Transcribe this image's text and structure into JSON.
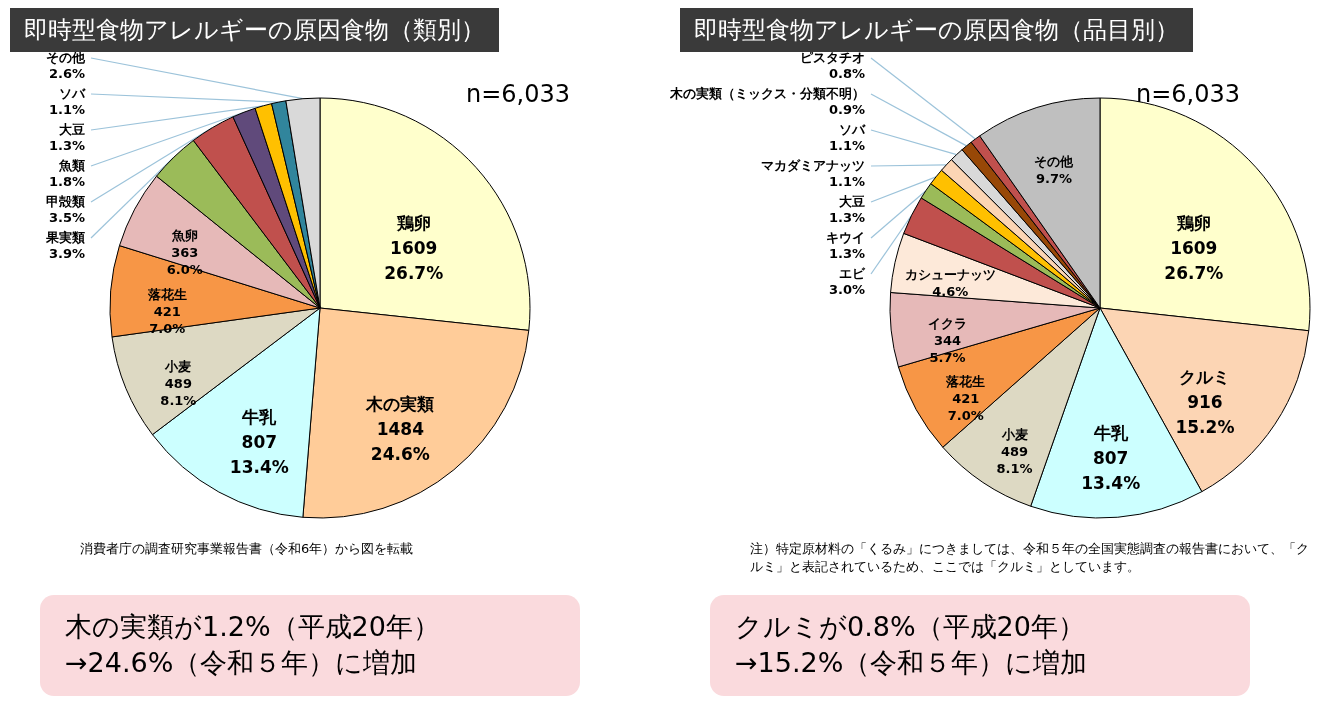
{
  "chart_data": [
    {
      "type": "pie",
      "title": "即時型食物アレルギーの原因食物（類別）",
      "categories": [
        "鶏卵",
        "木の実類",
        "牛乳",
        "小麦",
        "落花生",
        "魚卵",
        "果実類",
        "甲殻類",
        "魚類",
        "大豆",
        "ソバ",
        "その他"
      ],
      "values": [
        26.7,
        24.6,
        13.4,
        8.1,
        7.0,
        6.0,
        3.9,
        3.5,
        1.8,
        1.3,
        1.1,
        2.6
      ],
      "value_labels": [
        "1609\n26.7%",
        "1484\n24.6%",
        "807\n13.4%",
        "489\n8.1%",
        "421\n7.0%",
        "363\n6.0%",
        "3.9%",
        "3.5%",
        "1.8%",
        "1.3%",
        "1.1%",
        "2.6%"
      ],
      "colors": [
        "#ffffcc",
        "#ffcc99",
        "#ccffff",
        "#ddd9c3",
        "#f79646",
        "#e6b9b8",
        "#9bbb59",
        "#c0504d",
        "#604a7b",
        "#ffc000",
        "#31859c",
        "#d9d9d9"
      ],
      "annotations": [
        "n=6,033",
        "消費者庁の調査研究事業報告書（令和6年）から図を転載",
        "木の実類が1.2%（平成20年）\n→24.6%（令和５年）に増加"
      ]
    },
    {
      "type": "pie",
      "title": "即時型食物アレルギーの原因食物（品目別）",
      "categories": [
        "鶏卵",
        "クルミ",
        "牛乳",
        "小麦",
        "落花生",
        "イクラ",
        "カシューナッツ",
        "エビ",
        "キウイ",
        "大豆",
        "マカダミアナッツ",
        "ソバ",
        "木の実類（ミックス・分類不明）",
        "ピスタチオ",
        "その他"
      ],
      "values": [
        26.7,
        15.2,
        13.4,
        8.1,
        7.0,
        5.7,
        4.6,
        3.0,
        1.3,
        1.3,
        1.1,
        1.1,
        0.9,
        0.8,
        9.7
      ],
      "value_labels": [
        "1609\n26.7%",
        "916\n15.2%",
        "807\n13.4%",
        "489\n8.1%",
        "421\n7.0%",
        "344\n5.7%",
        "4.6%",
        "3.0%",
        "1.3%",
        "1.3%",
        "1.1%",
        "1.1%",
        "0.9%",
        "0.8%",
        "9.7%"
      ],
      "colors": [
        "#ffffcc",
        "#fcd5b4",
        "#ccffff",
        "#ddd9c3",
        "#f79646",
        "#e6b9b8",
        "#fde9d9",
        "#c0504d",
        "#9bbb59",
        "#ffc000",
        "#fcd5b4",
        "#d9d9d9",
        "#984807",
        "#c0504d",
        "#bfbfbf"
      ],
      "annotations": [
        "n=6,033",
        "注）特定原材料の「くるみ」につきましては、令和５年の全国実態調査の報告書において、「クルミ」と表記されているため、ここでは「クルミ」としています。",
        "クルミが0.8%（平成20年）\n→15.2%（令和５年）に増加"
      ]
    }
  ]
}
